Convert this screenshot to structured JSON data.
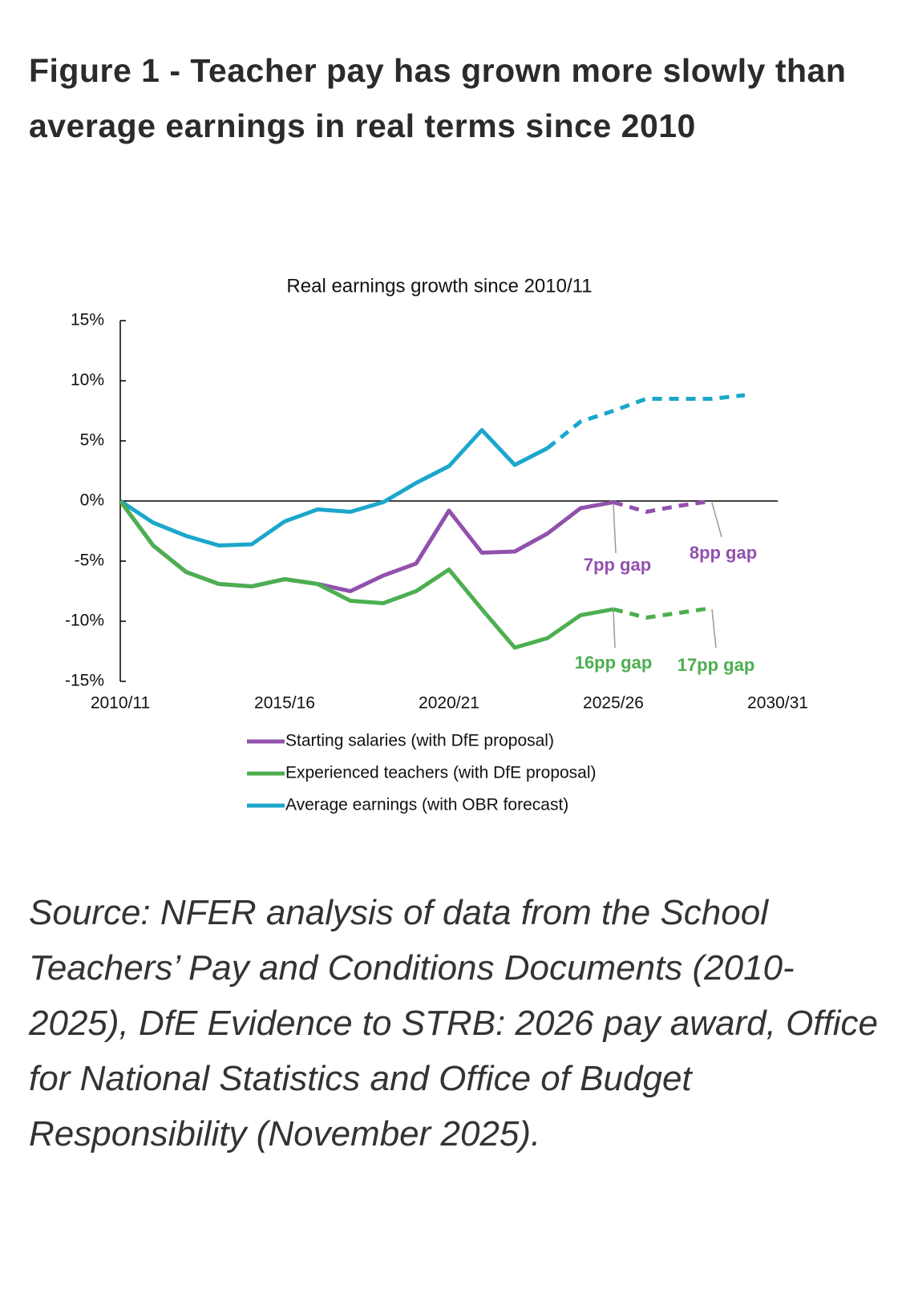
{
  "header": {
    "title": "Figure 1 - Teacher pay has grown more slowly than average earnings in real terms since 2010"
  },
  "chart_data": {
    "type": "line",
    "title": "Real earnings growth since 2010/11",
    "categories": [
      "2010/11",
      null,
      null,
      null,
      null,
      "2015/16",
      null,
      null,
      null,
      null,
      "2020/21",
      null,
      null,
      null,
      null,
      "2025/26",
      null,
      null,
      null,
      null,
      "2030/31"
    ],
    "series": [
      {
        "name": "Starting salaries (with DfE proposal)",
        "color": "#9251ad",
        "forecast_from": 15,
        "values": [
          0,
          -3.7,
          -5.9,
          -6.9,
          -7.1,
          -6.5,
          -6.9,
          -7.5,
          -6.2,
          -5.2,
          -0.8,
          -4.3,
          -4.2,
          -2.7,
          -0.6,
          -0.1,
          -0.9,
          -0.4,
          0,
          null,
          null
        ]
      },
      {
        "name": "Experienced teachers (with DfE proposal)",
        "color": "#4caf50",
        "forecast_from": 15,
        "values": [
          0,
          -3.7,
          -5.9,
          -6.9,
          -7.1,
          -6.5,
          -6.9,
          -8.3,
          -8.5,
          -7.5,
          -5.7,
          -9.0,
          -12.2,
          -11.4,
          -9.5,
          -9.0,
          -9.7,
          -9.3,
          -8.9,
          null,
          null
        ]
      },
      {
        "name": "Average earnings (with OBR forecast)",
        "color": "#1ba7cc",
        "forecast_from": 13,
        "values": [
          0,
          -1.8,
          -2.9,
          -3.7,
          -3.6,
          -1.7,
          -0.7,
          -0.9,
          -0.1,
          1.5,
          2.9,
          5.9,
          3.0,
          4.4,
          6.6,
          7.5,
          8.5,
          8.5,
          8.5,
          8.8,
          null
        ]
      }
    ],
    "ylim": [
      -15,
      15
    ],
    "yticks": [
      {
        "value": -15,
        "label": "-15%"
      },
      {
        "value": -10,
        "label": "-10%"
      },
      {
        "value": -5,
        "label": "-5%"
      },
      {
        "value": 0,
        "label": "0%"
      },
      {
        "value": 5,
        "label": "5%"
      },
      {
        "value": 10,
        "label": "10%"
      },
      {
        "value": 15,
        "label": "15%"
      }
    ],
    "annotations": [
      {
        "text": "7pp gap",
        "color": "#9251ad"
      },
      {
        "text": "8pp gap",
        "color": "#9251ad"
      },
      {
        "text": "16pp gap",
        "color": "#4caf50"
      },
      {
        "text": "17pp gap",
        "color": "#4caf50"
      }
    ]
  },
  "source": "Source: NFER analysis of data from the School Teachers’ Pay and Conditions Documents (2010-2025), DfE Evidence to STRB: 2026 pay award, Office for National Statistics and Office of Budget Responsibility (November 2025)."
}
